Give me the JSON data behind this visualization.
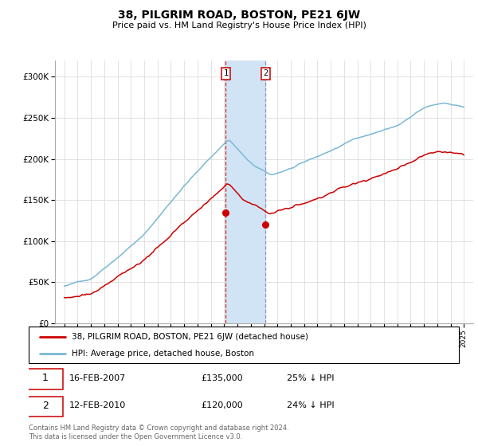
{
  "title": "38, PILGRIM ROAD, BOSTON, PE21 6JW",
  "subtitle": "Price paid vs. HM Land Registry's House Price Index (HPI)",
  "hpi_color": "#7bb8d4",
  "price_color": "#cc0000",
  "highlight_color": "#d0e4f5",
  "transaction1_year": 2007.124,
  "transaction1_price": 135000,
  "transaction2_year": 2010.117,
  "transaction2_price": 120000,
  "legend_line1": "38, PILGRIM ROAD, BOSTON, PE21 6JW (detached house)",
  "legend_line2": "HPI: Average price, detached house, Boston",
  "footer": "Contains HM Land Registry data © Crown copyright and database right 2024.\nThis data is licensed under the Open Government Licence v3.0.",
  "ylim_min": 0,
  "ylim_max": 320000,
  "xlim_min": 1994.3,
  "xlim_max": 2025.7
}
